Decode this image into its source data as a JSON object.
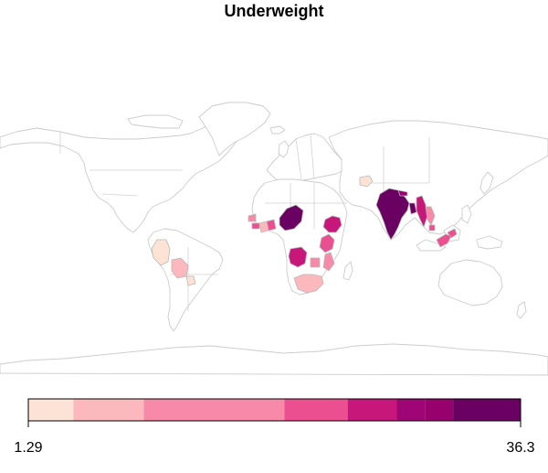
{
  "title": "Underweight",
  "legend": {
    "min_label": "1.29",
    "max_label": "36.3",
    "min_value": 1.29,
    "max_value": 36.3,
    "bins": [
      {
        "from": 1.29,
        "to": 4.5,
        "color": "#fde2d6"
      },
      {
        "from": 4.5,
        "to": 9.5,
        "color": "#fbb9bd"
      },
      {
        "from": 9.5,
        "to": 19.5,
        "color": "#f68aa8"
      },
      {
        "from": 19.5,
        "to": 24.0,
        "color": "#ec4f8f"
      },
      {
        "from": 24.0,
        "to": 27.5,
        "color": "#c8177a"
      },
      {
        "from": 27.5,
        "to": 29.5,
        "color": "#a00576"
      },
      {
        "from": 29.5,
        "to": 31.5,
        "color": "#98006d"
      },
      {
        "from": 31.5,
        "to": 36.3,
        "color": "#6a0061"
      }
    ]
  },
  "colors": {
    "land_fill": "#ffffff",
    "border": "#cccccc",
    "frame": "#000000"
  }
}
